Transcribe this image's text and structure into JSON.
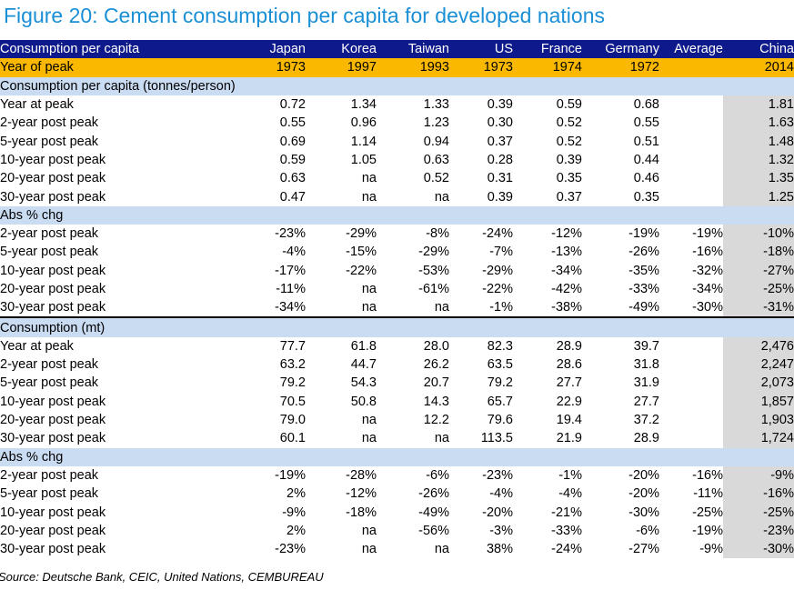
{
  "title": "Figure 20: Cement consumption per capita for developed nations",
  "source": "Source: Deutsche Bank, CEIC, United Nations, CEMBUREAU",
  "columns": [
    "Japan",
    "Korea",
    "Taiwan",
    "US",
    "France",
    "Germany",
    "Average",
    "China"
  ],
  "header_label": "Consumption per capita",
  "peak": {
    "label": "Year of peak",
    "values": [
      "1973",
      "1997",
      "1993",
      "1973",
      "1974",
      "1972",
      "",
      "2014"
    ]
  },
  "sections": [
    {
      "title": "Consumption per capita (tonnes/person)",
      "rule": false,
      "rows": [
        {
          "label": "Year at peak",
          "values": [
            "0.72",
            "1.34",
            "1.33",
            "0.39",
            "0.59",
            "0.68",
            "",
            "1.81"
          ]
        },
        {
          "label": "2-year post peak",
          "values": [
            "0.55",
            "0.96",
            "1.23",
            "0.30",
            "0.52",
            "0.55",
            "",
            "1.63"
          ]
        },
        {
          "label": "5-year post peak",
          "values": [
            "0.69",
            "1.14",
            "0.94",
            "0.37",
            "0.52",
            "0.51",
            "",
            "1.48"
          ]
        },
        {
          "label": "10-year post peak",
          "values": [
            "0.59",
            "1.05",
            "0.63",
            "0.28",
            "0.39",
            "0.44",
            "",
            "1.32"
          ]
        },
        {
          "label": "20-year post peak",
          "values": [
            "0.63",
            "na",
            "0.52",
            "0.31",
            "0.35",
            "0.46",
            "",
            "1.35"
          ]
        },
        {
          "label": "30-year post peak",
          "values": [
            "0.47",
            "na",
            "na",
            "0.39",
            "0.37",
            "0.35",
            "",
            "1.25"
          ]
        }
      ]
    },
    {
      "title": "Abs % chg",
      "rule": false,
      "rows": [
        {
          "label": "2-year post peak",
          "values": [
            "-23%",
            "-29%",
            "-8%",
            "-24%",
            "-12%",
            "-19%",
            "-19%",
            "-10%"
          ]
        },
        {
          "label": "5-year post peak",
          "values": [
            "-4%",
            "-15%",
            "-29%",
            "-7%",
            "-13%",
            "-26%",
            "-16%",
            "-18%"
          ]
        },
        {
          "label": "10-year post peak",
          "values": [
            "-17%",
            "-22%",
            "-53%",
            "-29%",
            "-34%",
            "-35%",
            "-32%",
            "-27%"
          ]
        },
        {
          "label": "20-year post peak",
          "values": [
            "-11%",
            "na",
            "-61%",
            "-22%",
            "-42%",
            "-33%",
            "-34%",
            "-25%"
          ]
        },
        {
          "label": "30-year post peak",
          "values": [
            "-34%",
            "na",
            "na",
            "-1%",
            "-38%",
            "-49%",
            "-30%",
            "-31%"
          ]
        }
      ]
    },
    {
      "title": "Consumption (mt)",
      "rule": true,
      "rows": [
        {
          "label": "Year at peak",
          "values": [
            "77.7",
            "61.8",
            "28.0",
            "82.3",
            "28.9",
            "39.7",
            "",
            "2,476"
          ]
        },
        {
          "label": "2-year post peak",
          "values": [
            "63.2",
            "44.7",
            "26.2",
            "63.5",
            "28.6",
            "31.8",
            "",
            "2,247"
          ]
        },
        {
          "label": "5-year post peak",
          "values": [
            "79.2",
            "54.3",
            "20.7",
            "79.2",
            "27.7",
            "31.9",
            "",
            "2,073"
          ]
        },
        {
          "label": "10-year post peak",
          "values": [
            "70.5",
            "50.8",
            "14.3",
            "65.7",
            "22.9",
            "27.7",
            "",
            "1,857"
          ]
        },
        {
          "label": "20-year post peak",
          "values": [
            "79.0",
            "na",
            "12.2",
            "79.6",
            "19.4",
            "37.2",
            "",
            "1,903"
          ]
        },
        {
          "label": "30-year post peak",
          "values": [
            "60.1",
            "na",
            "na",
            "113.5",
            "21.9",
            "28.9",
            "",
            "1,724"
          ]
        }
      ]
    },
    {
      "title": "Abs % chg",
      "rule": false,
      "rows": [
        {
          "label": "2-year post peak",
          "values": [
            "-19%",
            "-28%",
            "-6%",
            "-23%",
            "-1%",
            "-20%",
            "-16%",
            "-9%"
          ]
        },
        {
          "label": "5-year post peak",
          "values": [
            "2%",
            "-12%",
            "-26%",
            "-4%",
            "-4%",
            "-20%",
            "-11%",
            "-16%"
          ]
        },
        {
          "label": "10-year post peak",
          "values": [
            "-9%",
            "-18%",
            "-49%",
            "-20%",
            "-21%",
            "-30%",
            "-25%",
            "-25%"
          ]
        },
        {
          "label": "20-year post peak",
          "values": [
            "2%",
            "na",
            "-56%",
            "-3%",
            "-33%",
            "-6%",
            "-19%",
            "-23%"
          ]
        },
        {
          "label": "30-year post peak",
          "values": [
            "-23%",
            "na",
            "na",
            "38%",
            "-24%",
            "-27%",
            "-9%",
            "-30%"
          ]
        }
      ]
    }
  ],
  "colors": {
    "title": "#1a8fd6",
    "header_bg": "#0e1a8c",
    "peak_bg": "#fbb800",
    "section_bg": "#cadcf2",
    "china_bg": "#d9d9d9"
  }
}
